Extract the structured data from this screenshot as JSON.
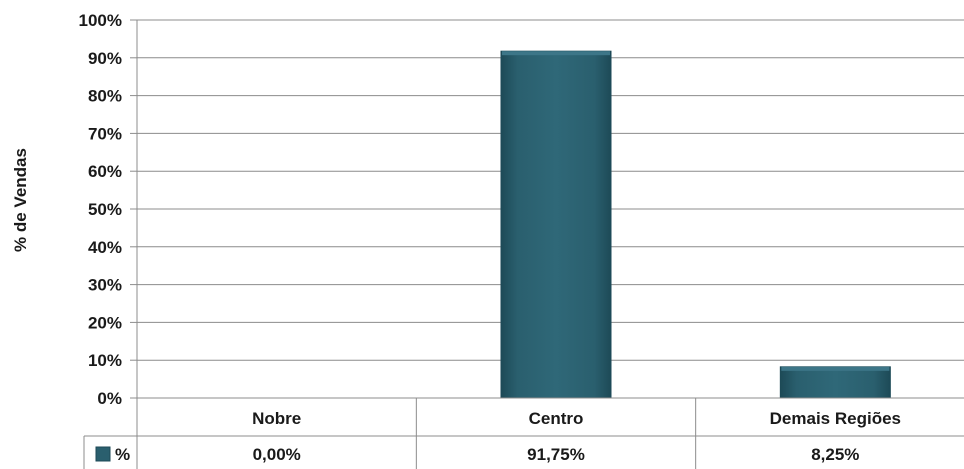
{
  "chart_data": {
    "type": "bar",
    "categories": [
      "Nobre",
      "Centro",
      "Demais Regiões"
    ],
    "series": [
      {
        "name": "%",
        "values": [
          0.0,
          91.75,
          8.25
        ],
        "labels": [
          "0,00%",
          "91,75%",
          "8,25%"
        ]
      }
    ],
    "ylabel": "% de Vendas",
    "xlabel": "",
    "ylim": [
      0,
      100
    ],
    "y_ticks": [
      "0%",
      "10%",
      "20%",
      "30%",
      "40%",
      "50%",
      "60%",
      "70%",
      "80%",
      "90%",
      "100%"
    ],
    "grid": true,
    "legend": "data-table-left",
    "colors": {
      "bar": "#2a5f6e",
      "bar_dark": "#1d4a57",
      "bar_light": "#3d7688",
      "grid": "#8c8c8c"
    }
  }
}
